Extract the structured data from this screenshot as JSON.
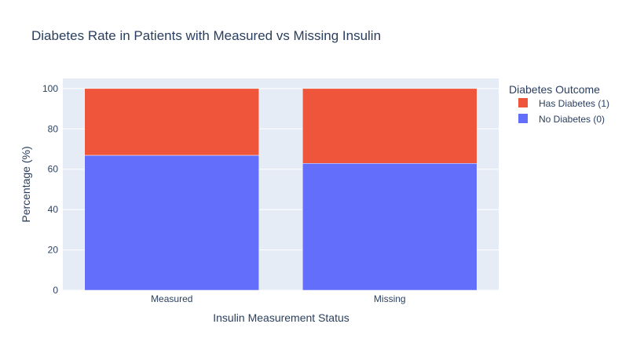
{
  "chart_data": {
    "type": "bar",
    "stacked": true,
    "title": "Diabetes Rate in Patients with Measured vs Missing Insulin",
    "xlabel": "Insulin Measurement Status",
    "ylabel": "Percentage (%)",
    "categories": [
      "Measured",
      "Missing"
    ],
    "ylim": [
      0,
      105
    ],
    "yticks": [
      0,
      20,
      40,
      60,
      80,
      100
    ],
    "grid": true,
    "legend_title": "Diabetes Outcome",
    "legend_position": "top-right",
    "series": [
      {
        "name": "No Diabetes (0)",
        "values": [
          66.9,
          62.9
        ],
        "color": "#636efa"
      },
      {
        "name": "Has Diabetes (1)",
        "values": [
          33.1,
          37.1
        ],
        "color": "#ef553b"
      }
    ],
    "legend_order": [
      "Has Diabetes (1)",
      "No Diabetes (0)"
    ],
    "plot_background": "#e5ecf6"
  }
}
